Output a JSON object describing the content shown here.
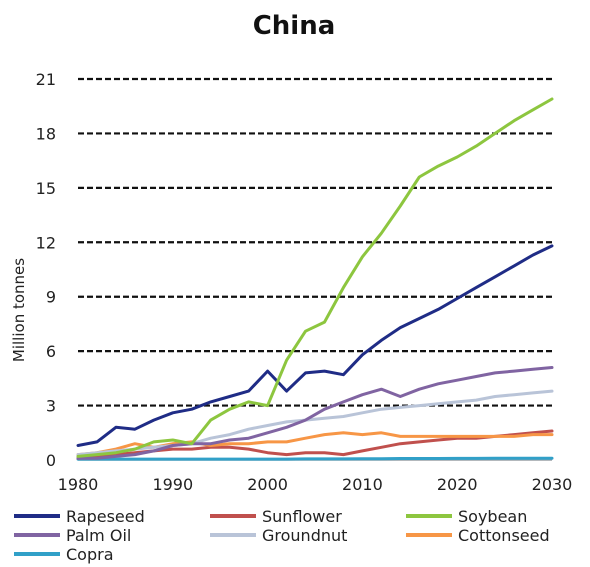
{
  "chart_data": {
    "type": "line",
    "title": "China",
    "ylabel": "Million tonnes",
    "xlabel": "",
    "xlim": [
      1980,
      2030
    ],
    "ylim": [
      0,
      21
    ],
    "xticks": [
      1980,
      1990,
      2000,
      2010,
      2020,
      2030
    ],
    "yticks": [
      0,
      3,
      6,
      9,
      12,
      15,
      18,
      21
    ],
    "grid": "horizontal dashed",
    "legend_position": "bottom",
    "x": [
      1980,
      1982,
      1984,
      1986,
      1988,
      1990,
      1992,
      1994,
      1996,
      1998,
      2000,
      2002,
      2004,
      2006,
      2008,
      2010,
      2012,
      2014,
      2016,
      2018,
      2020,
      2022,
      2024,
      2026,
      2028,
      2030
    ],
    "series": [
      {
        "name": "Rapeseed",
        "color": "#1f2c86",
        "values": [
          0.8,
          1.0,
          1.8,
          1.7,
          2.2,
          2.6,
          2.8,
          3.2,
          3.5,
          3.8,
          4.9,
          3.8,
          4.8,
          4.9,
          4.7,
          5.8,
          6.6,
          7.3,
          7.8,
          8.3,
          8.9,
          9.5,
          10.1,
          10.7,
          11.3,
          11.8
        ]
      },
      {
        "name": "Sunflower",
        "color": "#c0504d",
        "values": [
          0.1,
          0.2,
          0.3,
          0.4,
          0.5,
          0.6,
          0.6,
          0.7,
          0.7,
          0.6,
          0.4,
          0.3,
          0.4,
          0.4,
          0.3,
          0.5,
          0.7,
          0.9,
          1.0,
          1.1,
          1.2,
          1.2,
          1.3,
          1.4,
          1.5,
          1.6
        ]
      },
      {
        "name": "Soybean",
        "color": "#8dc63f",
        "values": [
          0.2,
          0.3,
          0.4,
          0.6,
          1.0,
          1.1,
          0.9,
          2.2,
          2.8,
          3.2,
          3.0,
          5.5,
          7.1,
          7.6,
          9.5,
          11.2,
          12.5,
          14.0,
          15.6,
          16.2,
          16.7,
          17.3,
          18.0,
          18.7,
          19.3,
          19.9
        ]
      },
      {
        "name": "Palm Oil",
        "color": "#8064a2",
        "values": [
          0.1,
          0.1,
          0.2,
          0.3,
          0.5,
          0.8,
          0.9,
          0.9,
          1.1,
          1.2,
          1.5,
          1.8,
          2.2,
          2.8,
          3.2,
          3.6,
          3.9,
          3.5,
          3.9,
          4.2,
          4.4,
          4.6,
          4.8,
          4.9,
          5.0,
          5.1
        ]
      },
      {
        "name": "Groundnut",
        "color": "#b9c4d8",
        "values": [
          0.3,
          0.4,
          0.5,
          0.6,
          0.7,
          0.8,
          0.9,
          1.2,
          1.4,
          1.7,
          1.9,
          2.1,
          2.2,
          2.3,
          2.4,
          2.6,
          2.8,
          2.9,
          3.0,
          3.1,
          3.2,
          3.3,
          3.5,
          3.6,
          3.7,
          3.8
        ]
      },
      {
        "name": "Cottonseed",
        "color": "#f79646",
        "values": [
          0.3,
          0.4,
          0.6,
          0.9,
          0.7,
          0.9,
          1.0,
          0.8,
          0.9,
          0.9,
          1.0,
          1.0,
          1.2,
          1.4,
          1.5,
          1.4,
          1.5,
          1.3,
          1.3,
          1.3,
          1.3,
          1.3,
          1.3,
          1.3,
          1.4,
          1.4
        ]
      },
      {
        "name": "Copra",
        "color": "#31a0c8",
        "values": [
          0.05,
          0.05,
          0.05,
          0.05,
          0.05,
          0.05,
          0.05,
          0.05,
          0.05,
          0.05,
          0.05,
          0.05,
          0.06,
          0.06,
          0.06,
          0.07,
          0.07,
          0.08,
          0.08,
          0.08,
          0.09,
          0.09,
          0.1,
          0.1,
          0.1,
          0.1
        ]
      }
    ]
  }
}
